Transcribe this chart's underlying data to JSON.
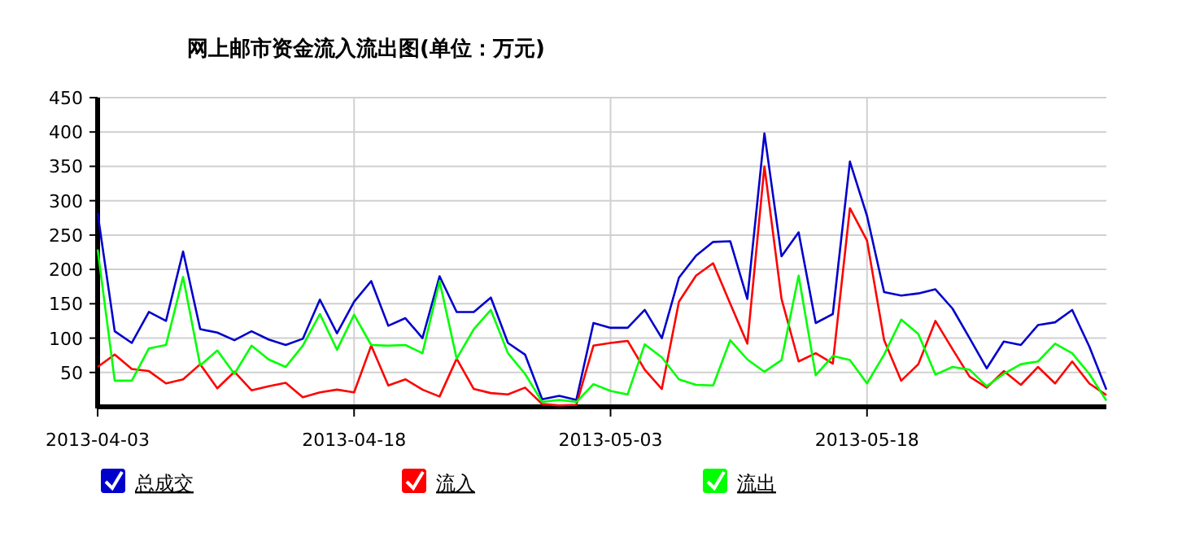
{
  "chart_data": {
    "type": "line",
    "title": "网上邮市资金流入流出图(单位：万元)",
    "x": [
      "2013-04-03",
      "2013-04-04",
      "2013-04-05",
      "2013-04-06",
      "2013-04-07",
      "2013-04-08",
      "2013-04-09",
      "2013-04-10",
      "2013-04-11",
      "2013-04-12",
      "2013-04-13",
      "2013-04-14",
      "2013-04-15",
      "2013-04-16",
      "2013-04-17",
      "2013-04-18",
      "2013-04-19",
      "2013-04-20",
      "2013-04-21",
      "2013-04-22",
      "2013-04-23",
      "2013-04-24",
      "2013-04-25",
      "2013-04-26",
      "2013-04-27",
      "2013-04-28",
      "2013-04-29",
      "2013-04-30",
      "2013-05-01",
      "2013-05-02",
      "2013-05-03",
      "2013-05-04",
      "2013-05-05",
      "2013-05-06",
      "2013-05-07",
      "2013-05-08",
      "2013-05-09",
      "2013-05-10",
      "2013-05-11",
      "2013-05-12",
      "2013-05-13",
      "2013-05-14",
      "2013-05-15",
      "2013-05-16",
      "2013-05-17",
      "2013-05-18",
      "2013-05-19",
      "2013-05-20",
      "2013-05-21",
      "2013-05-22",
      "2013-05-23",
      "2013-05-24",
      "2013-05-25",
      "2013-05-26",
      "2013-05-27",
      "2013-05-28",
      "2013-05-29",
      "2013-05-30",
      "2013-05-31",
      "2013-06-01"
    ],
    "series": [
      {
        "name": "总成交",
        "color": "#0000cc",
        "values": [
          282,
          110,
          93,
          138,
          125,
          226,
          113,
          108,
          97,
          110,
          98,
          90,
          99,
          156,
          107,
          153,
          183,
          118,
          129,
          100,
          190,
          138,
          138,
          159,
          93,
          76,
          11,
          16,
          10,
          122,
          115,
          115,
          141,
          100,
          188,
          220,
          240,
          241,
          157,
          398,
          219,
          254,
          122,
          135,
          357,
          278,
          167,
          162,
          165,
          171,
          143,
          100,
          56,
          95,
          90,
          119,
          123,
          141,
          88,
          25
        ]
      },
      {
        "name": "流入",
        "color": "#ff0000",
        "values": [
          58,
          76,
          55,
          52,
          34,
          40,
          62,
          27,
          51,
          24,
          30,
          35,
          14,
          21,
          25,
          21,
          89,
          31,
          40,
          25,
          15,
          70,
          26,
          20,
          18,
          28,
          4,
          2,
          3,
          89,
          93,
          96,
          54,
          26,
          153,
          191,
          209,
          150,
          92,
          350,
          157,
          66,
          78,
          63,
          289,
          242,
          97,
          38,
          62,
          125,
          84,
          44,
          28,
          52,
          32,
          58,
          34,
          66,
          34,
          17
        ]
      },
      {
        "name": "流出",
        "color": "#00ff00",
        "values": [
          229,
          38,
          38,
          85,
          90,
          189,
          60,
          82,
          48,
          89,
          69,
          58,
          89,
          135,
          83,
          134,
          90,
          89,
          90,
          78,
          183,
          70,
          113,
          141,
          78,
          48,
          7,
          10,
          7,
          33,
          23,
          18,
          91,
          72,
          40,
          32,
          31,
          97,
          69,
          51,
          68,
          191,
          46,
          74,
          68,
          34,
          76,
          127,
          106,
          47,
          58,
          54,
          30,
          48,
          62,
          66,
          92,
          78,
          48,
          9
        ]
      }
    ],
    "xlim": [
      "2013-04-03",
      "2013-06-01"
    ],
    "xticks": [
      "2013-04-03",
      "2013-04-18",
      "2013-05-03",
      "2013-05-18"
    ],
    "ylim": [
      0,
      450
    ],
    "yticks": [
      50,
      100,
      150,
      200,
      250,
      300,
      350,
      400,
      450
    ],
    "grid": true,
    "legend": "bottom"
  }
}
